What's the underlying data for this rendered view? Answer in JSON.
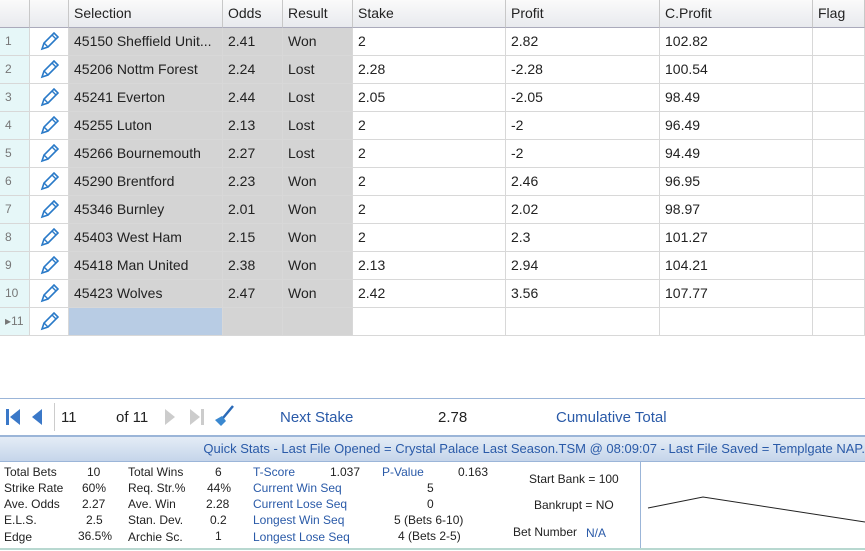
{
  "columns": [
    "",
    "",
    "Selection",
    "Odds",
    "Result",
    "Stake",
    "Profit",
    "C.Profit",
    "Flag"
  ],
  "rows": [
    {
      "n": "1",
      "selection": "45150 Sheffield Unit...",
      "odds": "2.41",
      "result": "Won",
      "stake": "2",
      "profit": "2.82",
      "cprofit": "102.82"
    },
    {
      "n": "2",
      "selection": "45206 Nottm Forest",
      "odds": "2.24",
      "result": "Lost",
      "stake": "2.28",
      "profit": "-2.28",
      "cprofit": "100.54"
    },
    {
      "n": "3",
      "selection": "45241 Everton",
      "odds": "2.44",
      "result": "Lost",
      "stake": "2.05",
      "profit": "-2.05",
      "cprofit": "98.49"
    },
    {
      "n": "4",
      "selection": "45255 Luton",
      "odds": "2.13",
      "result": "Lost",
      "stake": "2",
      "profit": "-2",
      "cprofit": "96.49"
    },
    {
      "n": "5",
      "selection": "45266 Bournemouth",
      "odds": "2.27",
      "result": "Lost",
      "stake": "2",
      "profit": "-2",
      "cprofit": "94.49"
    },
    {
      "n": "6",
      "selection": "45290 Brentford",
      "odds": "2.23",
      "result": "Won",
      "stake": "2",
      "profit": "2.46",
      "cprofit": "96.95"
    },
    {
      "n": "7",
      "selection": "45346 Burnley",
      "odds": "2.01",
      "result": "Won",
      "stake": "2",
      "profit": "2.02",
      "cprofit": "98.97"
    },
    {
      "n": "8",
      "selection": "45403 West Ham",
      "odds": "2.15",
      "result": "Won",
      "stake": "2",
      "profit": "2.3",
      "cprofit": "101.27"
    },
    {
      "n": "9",
      "selection": "45418 Man United",
      "odds": "2.38",
      "result": "Won",
      "stake": "2.13",
      "profit": "2.94",
      "cprofit": "104.21"
    },
    {
      "n": "10",
      "selection": "45423 Wolves",
      "odds": "2.47",
      "result": "Won",
      "stake": "2.42",
      "profit": "3.56",
      "cprofit": "107.77"
    }
  ],
  "new_row": {
    "n": "11"
  },
  "nav": {
    "current": "11",
    "of": "of 11",
    "next_stake_label": "Next Stake",
    "next_stake": "2.78",
    "cumulative_label": "Cumulative Total"
  },
  "quick_stats_title": "Quick Stats - Last File Opened = Crystal Palace Last Season.TSM @ 08:09:07 - Last File Saved = Templgate NAP.",
  "stats": {
    "total_bets_l": "Total Bets",
    "total_bets": "10",
    "strike_rate_l": "Strike Rate",
    "strike_rate": "60%",
    "ave_odds_l": "Ave. Odds",
    "ave_odds": "2.27",
    "els_l": "E.L.S.",
    "els": "2.5",
    "edge_l": "Edge",
    "edge": "36.5%",
    "total_wins_l": "Total Wins",
    "total_wins": "6",
    "req_str_l": "Req. Str.%",
    "req_str": "44%",
    "ave_win_l": "Ave. Win",
    "ave_win": "2.28",
    "stan_dev_l": "Stan. Dev.",
    "stan_dev": "0.2",
    "archie_l": "Archie Sc.",
    "archie": "1",
    "tscore_l": "T-Score",
    "tscore": "1.037",
    "pvalue_l": "P-Value",
    "pvalue": "0.163",
    "cur_win_l": "Current Win Seq",
    "cur_win": "5",
    "cur_lose_l": "Current Lose Seq",
    "cur_lose": "0",
    "long_win_l": "Longest Win Seq",
    "long_win": "5  (Bets 6-10)",
    "long_lose_l": "Longest Lose Seq",
    "long_lose": "4  (Bets 2-5)",
    "start_bank": "Start Bank = 100",
    "bankrupt": "Bankrupt = NO",
    "bet_number_l": "Bet Number",
    "bet_number": "N/A"
  },
  "colors": {
    "accent": "#2a5aa8",
    "grey_cell": "#d4d4d4",
    "new_row": "#b8cce4"
  }
}
